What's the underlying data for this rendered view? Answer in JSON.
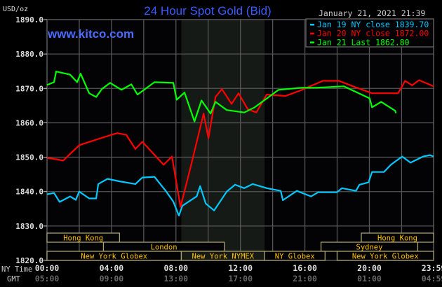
{
  "header": {
    "unit": "USD/oz",
    "title": "24 Hour Spot Gold (Bid)",
    "site": "www.kitco.com",
    "timestamp": "January 21, 2021 21:39"
  },
  "chart_data": {
    "type": "line",
    "title": "24 Hour Spot Gold (Bid)",
    "ylabel": "USD/oz",
    "ylim": [
      1820,
      1890
    ],
    "yticks": [
      "1890.0",
      "1880.0",
      "1870.0",
      "1860.0",
      "1850.0",
      "1840.0",
      "1830.0",
      "1820.0"
    ],
    "xlim": [
      "00:00",
      "23:59"
    ],
    "x_axis_label": "NY Time",
    "x_axis2_label": "GMT",
    "xticks_ny": [
      "00:00",
      "04:00",
      "08:00",
      "12:00",
      "16:00",
      "20:00",
      "23:59"
    ],
    "xticks_gmt": [
      "05:00",
      "09:00",
      "13:00",
      "17:00",
      "21:00",
      "01:00",
      "04:59"
    ],
    "grid": true,
    "legend_placement": "top-right",
    "highlight_period": [
      "08:20",
      "13:30"
    ],
    "series": [
      {
        "name": "Jan 19 NY close 1839.70",
        "color": "#00c8ff",
        "points": [
          [
            "00:00",
            1839.2
          ],
          [
            "00:26",
            1839.6
          ],
          [
            "00:47",
            1837
          ],
          [
            "01:26",
            1838.6
          ],
          [
            "01:47",
            1837.6
          ],
          [
            "02:00",
            1840
          ],
          [
            "02:37",
            1838
          ],
          [
            "03:03",
            1838
          ],
          [
            "03:11",
            1842.2
          ],
          [
            "03:45",
            1843.7
          ],
          [
            "04:29",
            1843
          ],
          [
            "05:29",
            1842.2
          ],
          [
            "05:55",
            1844.1
          ],
          [
            "06:40",
            1844.3
          ],
          [
            "07:24",
            1840
          ],
          [
            "07:50",
            1837.1
          ],
          [
            "08:11",
            1833
          ],
          [
            "08:24",
            1835.9
          ],
          [
            "09:17",
            1838.6
          ],
          [
            "09:30",
            1841.6
          ],
          [
            "09:51",
            1836.5
          ],
          [
            "10:22",
            1834.5
          ],
          [
            "11:09",
            1840
          ],
          [
            "11:40",
            1842
          ],
          [
            "12:14",
            1841
          ],
          [
            "12:46",
            1842.2
          ],
          [
            "13:38",
            1841
          ],
          [
            "14:30",
            1840.2
          ],
          [
            "14:38",
            1837.5
          ],
          [
            "15:30",
            1840.2
          ],
          [
            "16:23",
            1838.6
          ],
          [
            "16:49",
            1839.8
          ],
          [
            "17:59",
            1839.8
          ],
          [
            "18:18",
            1841
          ],
          [
            "19:10",
            1840.2
          ],
          [
            "19:23",
            1842
          ],
          [
            "19:57",
            1842.7
          ],
          [
            "20:10",
            1845.7
          ],
          [
            "20:54",
            1845.7
          ],
          [
            "21:20",
            1847.8
          ],
          [
            "22:02",
            1850.2
          ],
          [
            "22:33",
            1848.4
          ],
          [
            "23:20",
            1850.2
          ],
          [
            "23:46",
            1850.6
          ],
          [
            "23:59",
            1850.2
          ]
        ]
      },
      {
        "name": "Jan 20 NY close 1872.00",
        "color": "#ff0000",
        "points": [
          [
            "00:00",
            1849.8
          ],
          [
            "00:34",
            1849.4
          ],
          [
            "01:00",
            1849.0
          ],
          [
            "02:00",
            1853.5
          ],
          [
            "03:11",
            1855.3
          ],
          [
            "04:21",
            1857
          ],
          [
            "04:55",
            1856.5
          ],
          [
            "05:29",
            1852.4
          ],
          [
            "05:55",
            1854.5
          ],
          [
            "07:14",
            1847.8
          ],
          [
            "07:45",
            1850.2
          ],
          [
            "08:17",
            1835.5
          ],
          [
            "08:58",
            1848.2
          ],
          [
            "09:43",
            1862.7
          ],
          [
            "10:01",
            1855.5
          ],
          [
            "10:27",
            1867.5
          ],
          [
            "10:51",
            1869.8
          ],
          [
            "11:27",
            1865.5
          ],
          [
            "11:53",
            1868.6
          ],
          [
            "12:27",
            1864
          ],
          [
            "12:59",
            1863
          ],
          [
            "13:38",
            1868.2
          ],
          [
            "14:48",
            1867.8
          ],
          [
            "15:49",
            1869.6
          ],
          [
            "17:07",
            1872.2
          ],
          [
            "18:07",
            1872.2
          ],
          [
            "18:59",
            1870.6
          ],
          [
            "20:10",
            1868.6
          ],
          [
            "21:47",
            1868.6
          ],
          [
            "22:13",
            1872.2
          ],
          [
            "22:39",
            1870.9
          ],
          [
            "23:05",
            1872.4
          ],
          [
            "23:59",
            1870.6
          ]
        ]
      },
      {
        "name": "Jan 21 Last 1862.80",
        "color": "#00ff00",
        "points": [
          [
            "00:00",
            1871
          ],
          [
            "00:26",
            1871.8
          ],
          [
            "00:34",
            1874.9
          ],
          [
            "01:26",
            1874
          ],
          [
            "01:52",
            1871.8
          ],
          [
            "02:05",
            1874.3
          ],
          [
            "02:37",
            1868.6
          ],
          [
            "03:03",
            1867.5
          ],
          [
            "03:24",
            1869.8
          ],
          [
            "03:55",
            1871.6
          ],
          [
            "04:37",
            1869.6
          ],
          [
            "05:14",
            1871.2
          ],
          [
            "05:37",
            1868.2
          ],
          [
            "06:40",
            1871.8
          ],
          [
            "07:50",
            1871.6
          ],
          [
            "08:03",
            1866.7
          ],
          [
            "08:32",
            1868.8
          ],
          [
            "09:09",
            1860.4
          ],
          [
            "09:35",
            1866.5
          ],
          [
            "10:09",
            1862.7
          ],
          [
            "10:27",
            1866.1
          ],
          [
            "11:09",
            1863.7
          ],
          [
            "12:14",
            1863
          ],
          [
            "12:53",
            1864.5
          ],
          [
            "14:22",
            1869.6
          ],
          [
            "15:49",
            1870.2
          ],
          [
            "16:41",
            1870.2
          ],
          [
            "18:25",
            1870.6
          ],
          [
            "20:01",
            1867.1
          ],
          [
            "20:10",
            1864.5
          ],
          [
            "20:44",
            1866.1
          ],
          [
            "21:36",
            1863.5
          ],
          [
            "21:39",
            1862.8
          ]
        ]
      }
    ],
    "sessions": [
      {
        "label": "Hong Kong",
        "row": 0,
        "start": "00:00",
        "end": "04:30"
      },
      {
        "label": "Hong Kong",
        "row": 0,
        "start": "19:30",
        "end": "23:59"
      },
      {
        "label": "London",
        "row": 1,
        "start": "03:30",
        "end": "11:00"
      },
      {
        "label": "Sydney",
        "row": 1,
        "start": "17:00",
        "end": "23:00"
      },
      {
        "label": "New York Globex",
        "row": 2,
        "start": "00:00",
        "end": "08:20"
      },
      {
        "label": "New York NYMEX",
        "row": 2,
        "start": "08:20",
        "end": "13:30"
      },
      {
        "label": "NY Globex",
        "row": 2,
        "start": "13:30",
        "end": "17:15"
      },
      {
        "label": "New York Globex",
        "row": 2,
        "start": "18:00",
        "end": "23:59"
      }
    ]
  },
  "colors": {
    "title": "#3a5cff",
    "site": "#4a6cff",
    "session_text": "#ffc000",
    "session_border": "#a8a070",
    "grid": "#555555",
    "highlight": "#161a16"
  }
}
